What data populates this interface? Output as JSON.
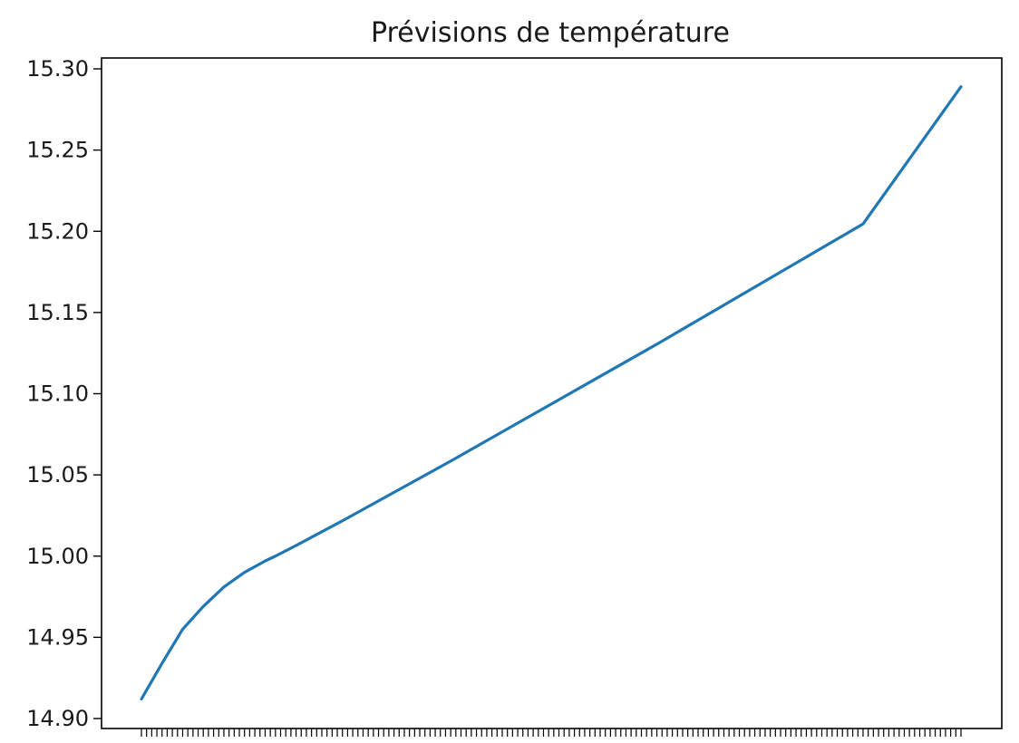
{
  "chart_data": {
    "type": "line",
    "title": "Prévisions de température",
    "xlabel": "",
    "ylabel": "",
    "ylim": [
      14.9,
      15.3
    ],
    "yticks": [
      "14.90",
      "14.95",
      "15.00",
      "15.05",
      "15.10",
      "15.15",
      "15.20",
      "15.25",
      "15.30"
    ],
    "x_tick_count": 160,
    "x_tick_labels_visible": false,
    "grid": false,
    "series": [
      {
        "color": "#1f77b4",
        "x": [
          0,
          4,
          8,
          12,
          16,
          20,
          24,
          26,
          30,
          40,
          60,
          80,
          100,
          120,
          140,
          159
        ],
        "values": [
          14.912,
          14.934,
          14.955,
          14.969,
          14.981,
          14.99,
          14.997,
          15.0,
          15.0065,
          15.0235,
          15.0585,
          15.0945,
          15.1305,
          15.1675,
          15.2045,
          15.289
        ]
      }
    ]
  }
}
